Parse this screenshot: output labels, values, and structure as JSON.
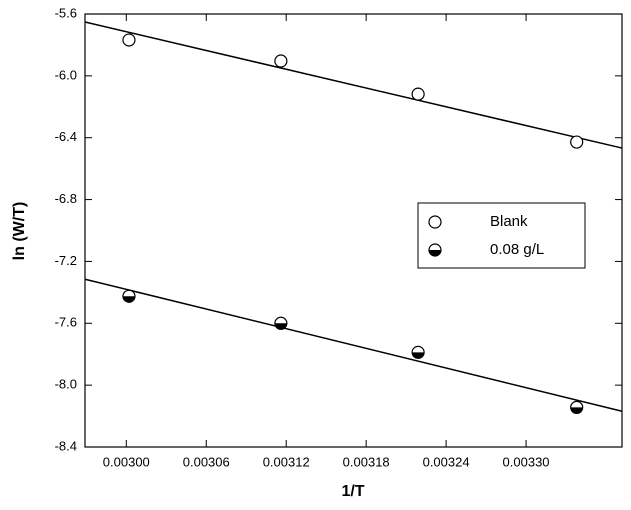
{
  "chart_data": {
    "type": "scatter",
    "xlabel": "1/T",
    "ylabel": "ln (W/T)",
    "xlim": [
      0.002969,
      0.003372
    ],
    "ylim": [
      -8.4,
      -5.6
    ],
    "xticks": [
      {
        "value": 0.003,
        "label": "0.00300"
      },
      0.00306,
      0.00312,
      0.00318,
      0.00324,
      {
        "value": 0.0033,
        "label": "0.00330"
      }
    ],
    "yticks": [
      -5.6,
      {
        "value": -6.0,
        "label": "-6.0"
      },
      -6.4,
      -6.8,
      -7.2,
      -7.6,
      {
        "value": -8.0,
        "label": "-8.0"
      },
      -8.4
    ],
    "series": [
      {
        "name": "Blank",
        "color": "#000000",
        "marker": "open",
        "x": [
          0.003002,
          0.003116,
          0.003219,
          0.003338
        ],
        "values": [
          -5.768,
          -5.904,
          -6.118,
          -6.428
        ]
      },
      {
        "name": "0.08 g/L",
        "color": "#000000",
        "marker": "half",
        "x": [
          0.003002,
          0.003116,
          0.003219,
          0.003338
        ],
        "values": [
          -7.425,
          -7.6,
          -7.788,
          -8.144
        ]
      }
    ],
    "fit_lines": [
      {
        "x": [
          0.002969,
          0.003372
        ],
        "values": [
          -5.652,
          -6.467
        ]
      },
      {
        "x": [
          0.002969,
          0.003372
        ],
        "values": [
          -7.315,
          -8.169
        ]
      }
    ]
  }
}
